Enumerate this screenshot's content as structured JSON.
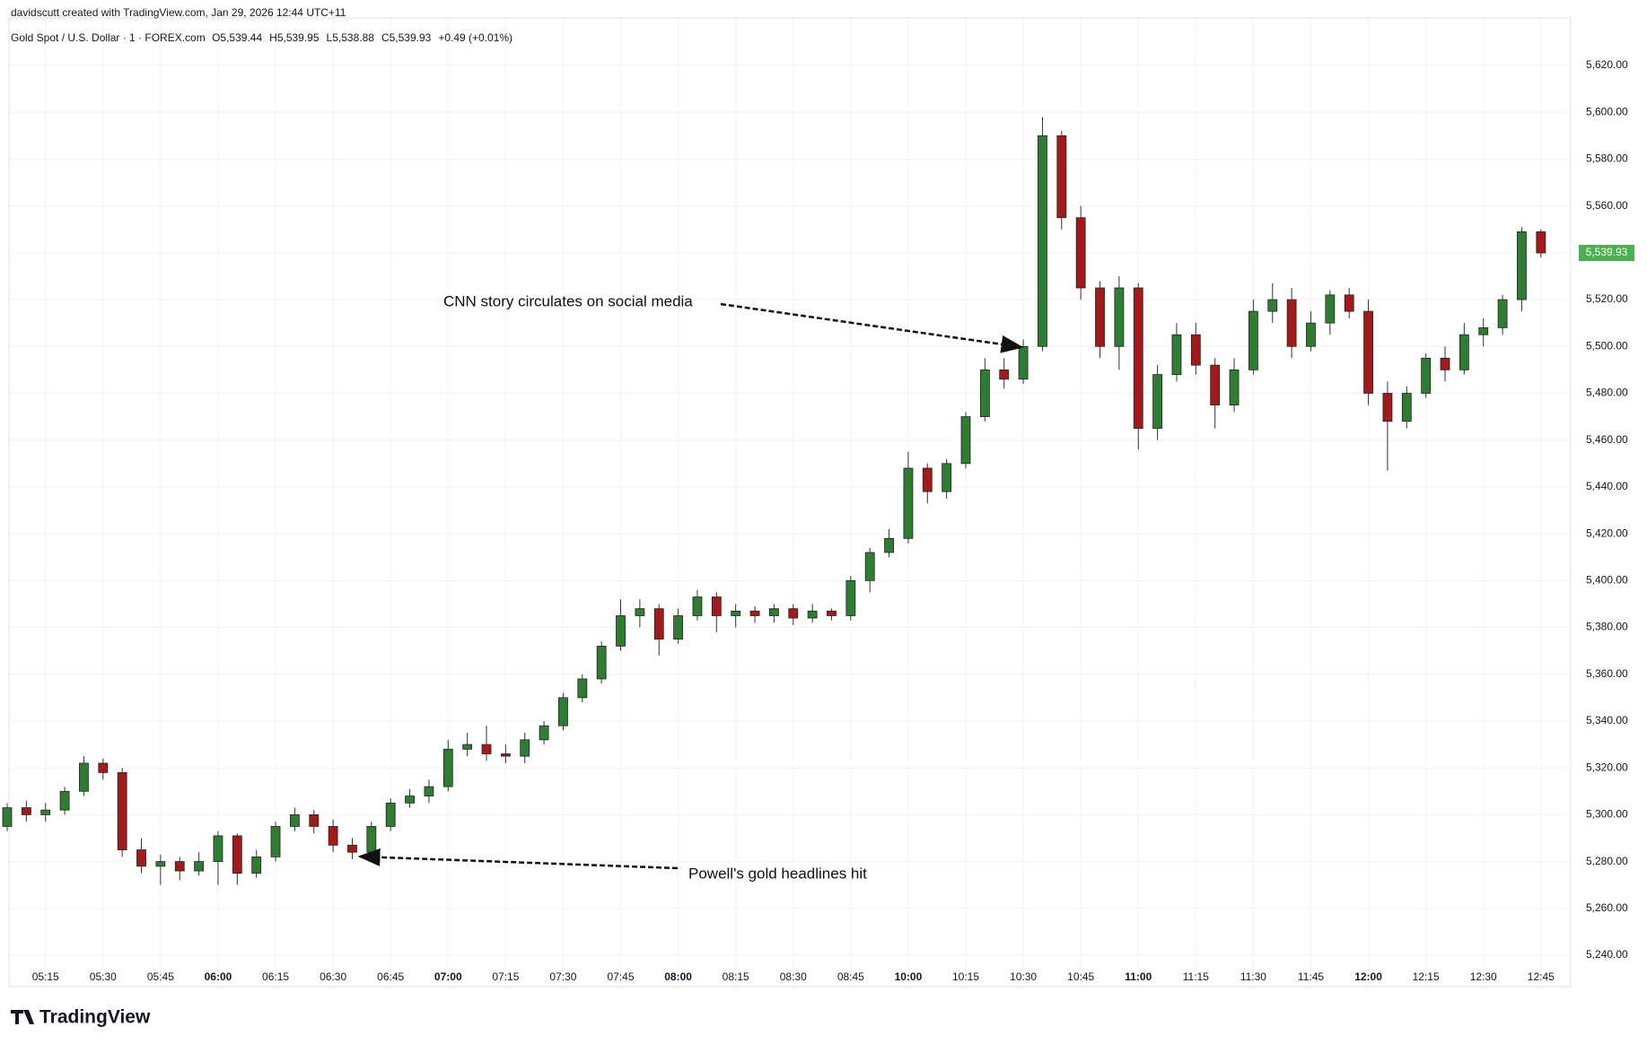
{
  "chart_data": {
    "type": "candlestick",
    "credit": "davidscutt created with TradingView.com, Jan 29, 2026 12:44 UTC+11",
    "symbol": "Gold Spot / U.S. Dollar · 1 · FOREX.com",
    "legend": [
      {
        "label": "O",
        "value": "5,539.44"
      },
      {
        "label": "H",
        "value": "5,539.95"
      },
      {
        "label": "L",
        "value": "5,538.88"
      },
      {
        "label": "C",
        "value": "5,539.93"
      }
    ],
    "change": "+0.49 (+0.01%)",
    "brand": "TradingView",
    "x": [
      "05:05",
      "05:10",
      "05:15",
      "05:20",
      "05:25",
      "05:30",
      "05:35",
      "05:40",
      "05:45",
      "05:50",
      "05:55",
      "06:00",
      "06:05",
      "06:10",
      "06:15",
      "06:20",
      "06:25",
      "06:30",
      "06:35",
      "06:40",
      "06:45",
      "06:50",
      "06:55",
      "07:00",
      "07:05",
      "07:10",
      "07:15",
      "07:20",
      "07:25",
      "07:30",
      "07:35",
      "07:40",
      "07:45",
      "07:50",
      "07:55",
      "08:00",
      "08:05",
      "08:10",
      "08:15",
      "08:20",
      "08:25",
      "08:30",
      "08:35",
      "08:40",
      "08:45",
      "08:50",
      "08:55",
      "10:00",
      "10:05",
      "10:10",
      "10:15",
      "10:20",
      "10:25",
      "10:30",
      "10:35",
      "10:40",
      "10:45",
      "10:50",
      "10:55",
      "11:00",
      "11:05",
      "11:10",
      "11:15",
      "11:20",
      "11:25",
      "11:30",
      "11:35",
      "11:40",
      "11:45",
      "11:50",
      "11:55",
      "12:00",
      "12:05",
      "12:10",
      "12:15",
      "12:20",
      "12:25",
      "12:30",
      "12:35",
      "12:40",
      "12:45"
    ],
    "open": [
      5295,
      5303,
      5300,
      5302,
      5310,
      5322,
      5318,
      5285,
      5278,
      5280,
      5276,
      5280,
      5291,
      5275,
      5282,
      5295,
      5300,
      5295,
      5287,
      5284,
      5295,
      5305,
      5308,
      5312,
      5328,
      5330,
      5326,
      5325,
      5332,
      5338,
      5350,
      5358,
      5372,
      5385,
      5388,
      5375,
      5385,
      5393,
      5385,
      5387,
      5385,
      5388,
      5384,
      5387,
      5385,
      5400,
      5412,
      5418,
      5448,
      5438,
      5450,
      5470,
      5490,
      5486,
      5500,
      5590,
      5555,
      5525,
      5500,
      5525,
      5465,
      5488,
      5505,
      5492,
      5475,
      5490,
      5515,
      5520,
      5500,
      5510,
      5522,
      5515,
      5480,
      5468,
      5480,
      5495,
      5490,
      5505,
      5508,
      5520,
      5549
    ],
    "high": [
      5305,
      5306,
      5305,
      5312,
      5325,
      5324,
      5320,
      5290,
      5283,
      5282,
      5284,
      5293,
      5292,
      5285,
      5297,
      5303,
      5302,
      5298,
      5290,
      5297,
      5307,
      5311,
      5315,
      5332,
      5335,
      5338,
      5330,
      5335,
      5340,
      5352,
      5360,
      5374,
      5392,
      5392,
      5390,
      5388,
      5396,
      5395,
      5390,
      5389,
      5390,
      5390,
      5390,
      5388,
      5402,
      5414,
      5422,
      5455,
      5450,
      5452,
      5472,
      5495,
      5495,
      5503,
      5598,
      5592,
      5560,
      5528,
      5530,
      5527,
      5492,
      5510,
      5510,
      5495,
      5495,
      5520,
      5527,
      5525,
      5515,
      5524,
      5525,
      5520,
      5485,
      5483,
      5497,
      5500,
      5510,
      5512,
      5522,
      5551,
      5550
    ],
    "low": [
      5293,
      5297,
      5297,
      5300,
      5308,
      5315,
      5282,
      5275,
      5270,
      5272,
      5274,
      5270,
      5270,
      5273,
      5280,
      5293,
      5292,
      5284,
      5281,
      5283,
      5293,
      5303,
      5305,
      5310,
      5325,
      5323,
      5322,
      5322,
      5330,
      5336,
      5348,
      5356,
      5370,
      5380,
      5368,
      5373,
      5383,
      5378,
      5380,
      5382,
      5382,
      5381,
      5382,
      5383,
      5383,
      5395,
      5410,
      5416,
      5433,
      5435,
      5448,
      5468,
      5482,
      5484,
      5498,
      5550,
      5520,
      5495,
      5490,
      5456,
      5460,
      5485,
      5488,
      5465,
      5472,
      5488,
      5510,
      5495,
      5498,
      5505,
      5512,
      5475,
      5447,
      5465,
      5478,
      5485,
      5488,
      5500,
      5505,
      5515,
      5538
    ],
    "close": [
      5303,
      5300,
      5302,
      5310,
      5322,
      5318,
      5285,
      5278,
      5280,
      5276,
      5280,
      5291,
      5275,
      5282,
      5295,
      5300,
      5295,
      5287,
      5284,
      5295,
      5305,
      5308,
      5312,
      5328,
      5330,
      5326,
      5325,
      5332,
      5338,
      5350,
      5358,
      5372,
      5385,
      5388,
      5375,
      5385,
      5393,
      5385,
      5387,
      5385,
      5388,
      5384,
      5387,
      5385,
      5400,
      5412,
      5418,
      5448,
      5438,
      5450,
      5470,
      5490,
      5486,
      5500,
      5590,
      5555,
      5525,
      5500,
      5525,
      5465,
      5488,
      5505,
      5492,
      5475,
      5490,
      5515,
      5520,
      5500,
      5510,
      5522,
      5515,
      5480,
      5468,
      5480,
      5495,
      5490,
      5505,
      5508,
      5520,
      5549,
      5539.93
    ],
    "up_color": "#2e7d32",
    "down_color": "#a31a1a",
    "last_price": {
      "value": 5539.93,
      "label": "5,539.93"
    },
    "last_price_color": "#4caf50",
    "ylim": [
      5226.6,
      5640.3
    ],
    "yticks": [
      {
        "value": 5240,
        "label": "5,240.00"
      },
      {
        "value": 5260,
        "label": "5,260.00"
      },
      {
        "value": 5280,
        "label": "5,280.00"
      },
      {
        "value": 5300,
        "label": "5,300.00"
      },
      {
        "value": 5320,
        "label": "5,320.00"
      },
      {
        "value": 5340,
        "label": "5,340.00"
      },
      {
        "value": 5360,
        "label": "5,360.00"
      },
      {
        "value": 5380,
        "label": "5,380.00"
      },
      {
        "value": 5400,
        "label": "5,400.00"
      },
      {
        "value": 5420,
        "label": "5,420.00"
      },
      {
        "value": 5440,
        "label": "5,440.00"
      },
      {
        "value": 5460,
        "label": "5,460.00"
      },
      {
        "value": 5480,
        "label": "5,480.00"
      },
      {
        "value": 5500,
        "label": "5,500.00"
      },
      {
        "value": 5520,
        "label": "5,520.00"
      },
      {
        "value": 5540,
        "label": "5,540.00"
      },
      {
        "value": 5560,
        "label": "5,560.00"
      },
      {
        "value": 5580,
        "label": "5,580.00"
      },
      {
        "value": 5600,
        "label": "5,600.00"
      },
      {
        "value": 5620,
        "label": "5,620.00"
      }
    ],
    "xticks": [
      "05:15",
      "05:30",
      "05:45",
      "06:00",
      "06:15",
      "06:30",
      "06:45",
      "07:00",
      "07:15",
      "07:30",
      "07:45",
      "08:00",
      "08:15",
      "08:30",
      "08:45",
      "10:00",
      "10:15",
      "10:30",
      "10:45",
      "11:00",
      "11:15",
      "11:30",
      "11:45",
      "12:00",
      "12:15",
      "12:30",
      "12:45"
    ],
    "grid": true,
    "annotations": [
      {
        "text": "CNN story circulates on social media"
      },
      {
        "text": "Powell's gold headlines hit"
      }
    ]
  }
}
